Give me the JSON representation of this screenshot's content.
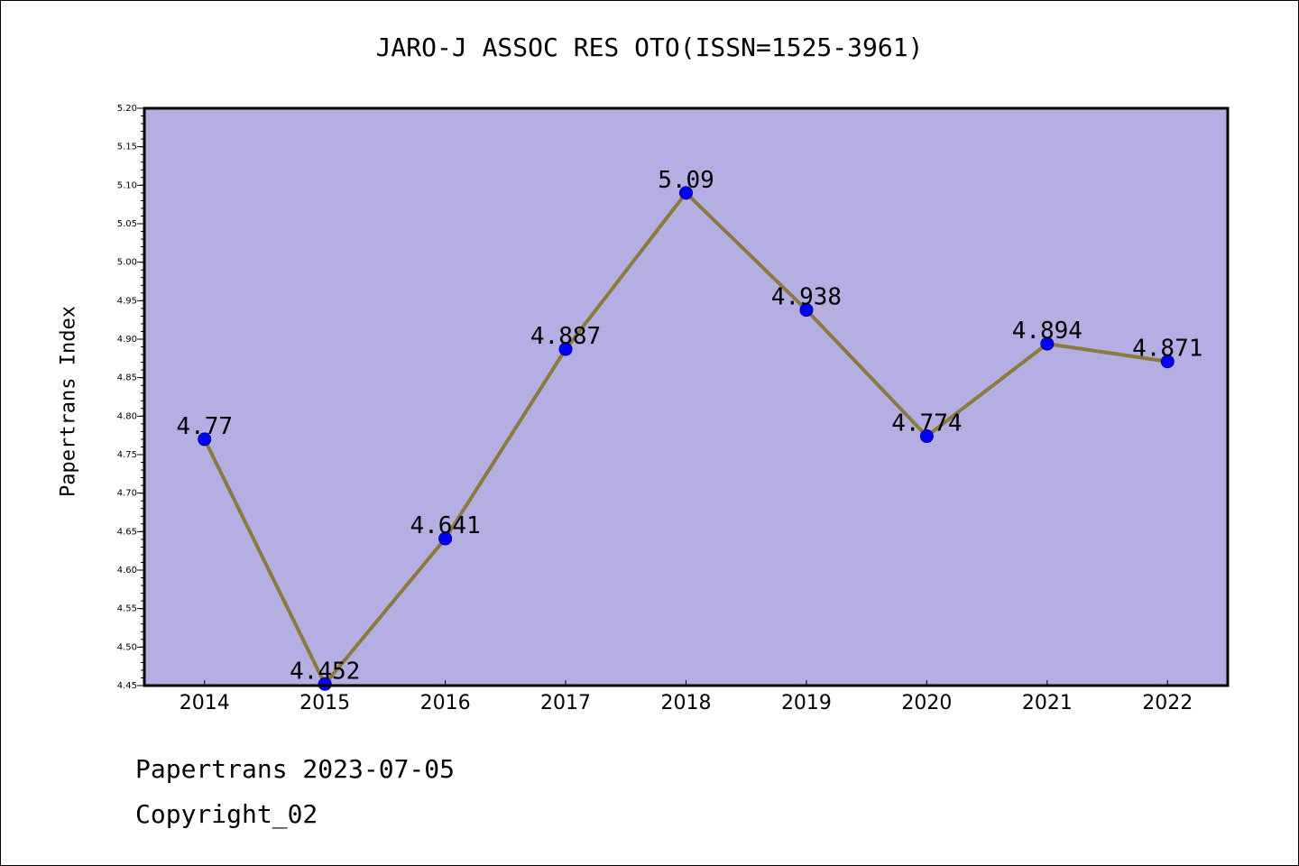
{
  "title": "JARO-J ASSOC RES OTO(ISSN=1525-3961)",
  "footer": {
    "line1": "Papertrans 2023-07-05",
    "line2": "Copyright_02"
  },
  "chart_data": {
    "type": "line",
    "title": "JARO-J ASSOC RES OTO(ISSN=1525-3961)",
    "xlabel": "",
    "ylabel": "Papertrans Index",
    "categories": [
      "2014",
      "2015",
      "2016",
      "2017",
      "2018",
      "2019",
      "2020",
      "2021",
      "2022"
    ],
    "values": [
      4.77,
      4.452,
      4.641,
      4.887,
      5.09,
      4.938,
      4.774,
      4.894,
      4.871
    ],
    "data_labels": [
      "4.77",
      "4.452",
      "4.641",
      "4.887",
      "5.09",
      "4.938",
      "4.774",
      "4.894",
      "4.871"
    ],
    "ylim": [
      4.45,
      5.2
    ],
    "yticks": [
      "4.45",
      "4.50",
      "4.55",
      "4.60",
      "4.65",
      "4.70",
      "4.75",
      "4.80",
      "4.85",
      "4.90",
      "4.95",
      "5.00",
      "5.05",
      "5.10",
      "5.15",
      "5.20"
    ],
    "grid": false,
    "legend": "none",
    "colors": {
      "plot_background": "#b5aee2",
      "line": "#8b7a3a",
      "marker": "#0000ff"
    }
  }
}
